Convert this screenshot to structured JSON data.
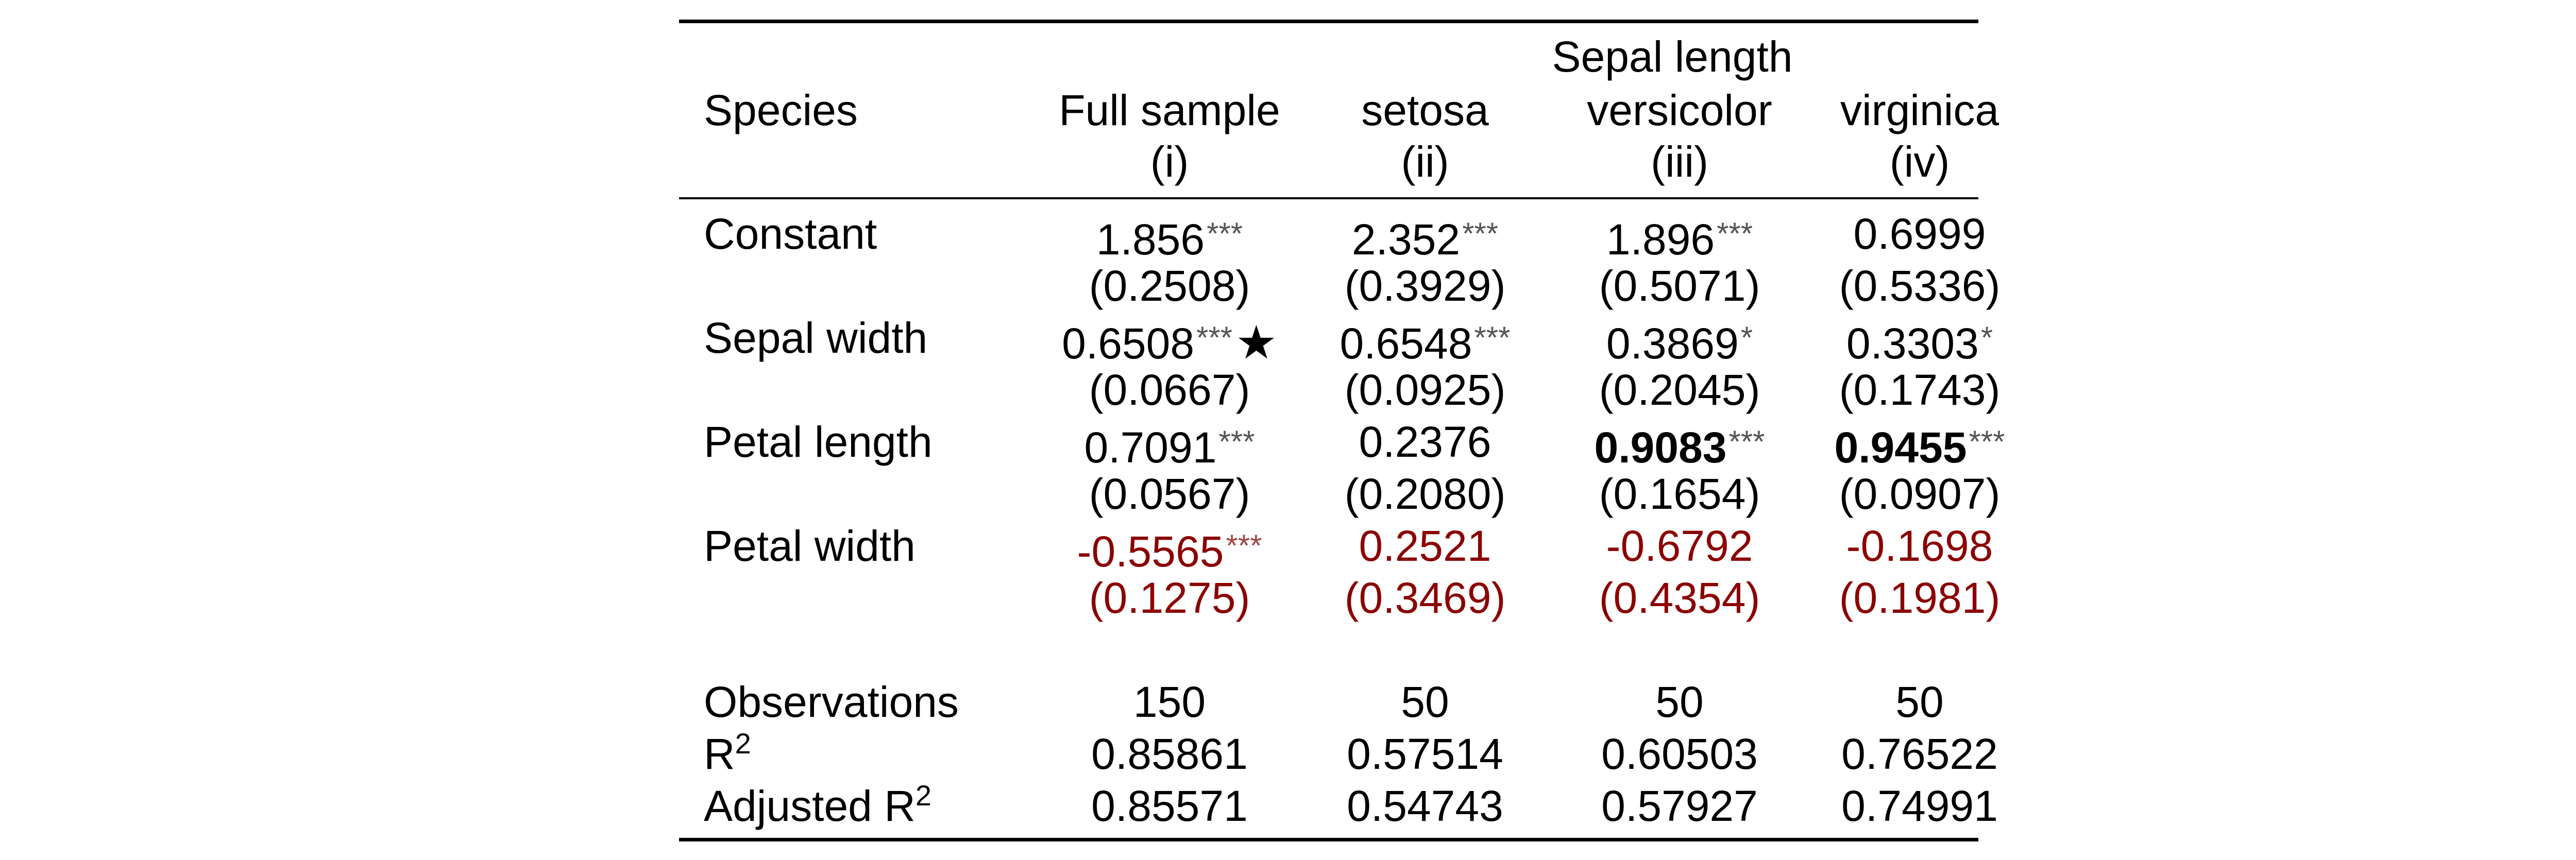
{
  "header": {
    "spanner": "Sepal length",
    "row_label": "Species",
    "columns": [
      {
        "name": "Full sample",
        "numeral": "(i)"
      },
      {
        "name": "setosa",
        "numeral": "(ii)"
      },
      {
        "name": "versicolor",
        "numeral": "(iii)"
      },
      {
        "name": "virginica",
        "numeral": "(iv)"
      }
    ]
  },
  "coefficients": [
    {
      "label": "Constant",
      "estimates": [
        {
          "value": "1.856",
          "stars": "***"
        },
        {
          "value": "2.352",
          "stars": "***"
        },
        {
          "value": "1.896",
          "stars": "***"
        },
        {
          "value": "0.6999",
          "stars": ""
        }
      ],
      "std_errors": [
        "(0.2508)",
        "(0.3929)",
        "(0.5071)",
        "(0.5336)"
      ]
    },
    {
      "label": "Sepal width",
      "estimates": [
        {
          "value": "0.6508",
          "stars": "***",
          "mark": "★"
        },
        {
          "value": "0.6548",
          "stars": "***"
        },
        {
          "value": "0.3869",
          "stars": "*"
        },
        {
          "value": "0.3303",
          "stars": "*"
        }
      ],
      "std_errors": [
        "(0.0667)",
        "(0.0925)",
        "(0.2045)",
        "(0.1743)"
      ]
    },
    {
      "label": "Petal length",
      "estimates": [
        {
          "value": "0.7091",
          "stars": "***"
        },
        {
          "value": "0.2376",
          "stars": ""
        },
        {
          "value": "0.9083",
          "stars": "***",
          "bold": true
        },
        {
          "value": "0.9455",
          "stars": "***",
          "bold": true
        }
      ],
      "std_errors": [
        "(0.0567)",
        "(0.2080)",
        "(0.1654)",
        "(0.0907)"
      ]
    },
    {
      "label": "Petal width",
      "highlight_color": "#8b0000",
      "estimates": [
        {
          "value": "-0.5565",
          "stars": "***"
        },
        {
          "value": "0.2521",
          "stars": ""
        },
        {
          "value": "-0.6792",
          "stars": ""
        },
        {
          "value": "-0.1698",
          "stars": ""
        }
      ],
      "std_errors": [
        "(0.1275)",
        "(0.3469)",
        "(0.4354)",
        "(0.1981)"
      ]
    }
  ],
  "statistics": [
    {
      "label": "Observations",
      "values": [
        "150",
        "50",
        "50",
        "50"
      ]
    },
    {
      "label": "R",
      "sup": "2",
      "values": [
        "0.85861",
        "0.57514",
        "0.60503",
        "0.76522"
      ]
    },
    {
      "label": "Adjusted R",
      "sup": "2",
      "values": [
        "0.85571",
        "0.54743",
        "0.57927",
        "0.74991"
      ]
    }
  ]
}
